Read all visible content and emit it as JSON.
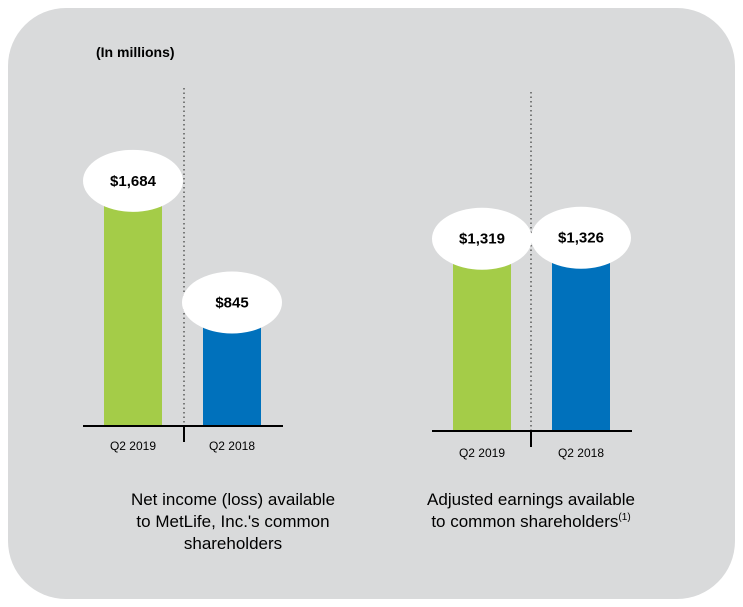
{
  "units_label": "(In millions)",
  "colors": {
    "panel": "#d9dadb",
    "green": "#a4cc48",
    "blue": "#0071bc",
    "bubble": "#ffffff"
  },
  "chart_data": [
    {
      "type": "bar",
      "title": "Net income (loss) available to MetLife, Inc.'s common shareholders",
      "title_lines": [
        "Net income (loss) available",
        "to MetLife, Inc.'s common",
        "shareholders"
      ],
      "categories": [
        "Q2 2019",
        "Q2 2018"
      ],
      "values": [
        1684,
        845
      ],
      "value_labels": [
        "$1,684",
        "$845"
      ],
      "ylim": [
        0,
        2000
      ],
      "grid": false
    },
    {
      "type": "bar",
      "title": "Adjusted earnings available to common shareholders(1)",
      "title_lines": [
        "Adjusted earnings available",
        "to common shareholders"
      ],
      "footnote_mark": "(1)",
      "categories": [
        "Q2 2019",
        "Q2 2018"
      ],
      "values": [
        1319,
        1326
      ],
      "value_labels": [
        "$1,319",
        "$1,326"
      ],
      "ylim": [
        0,
        2000
      ],
      "grid": false
    }
  ]
}
